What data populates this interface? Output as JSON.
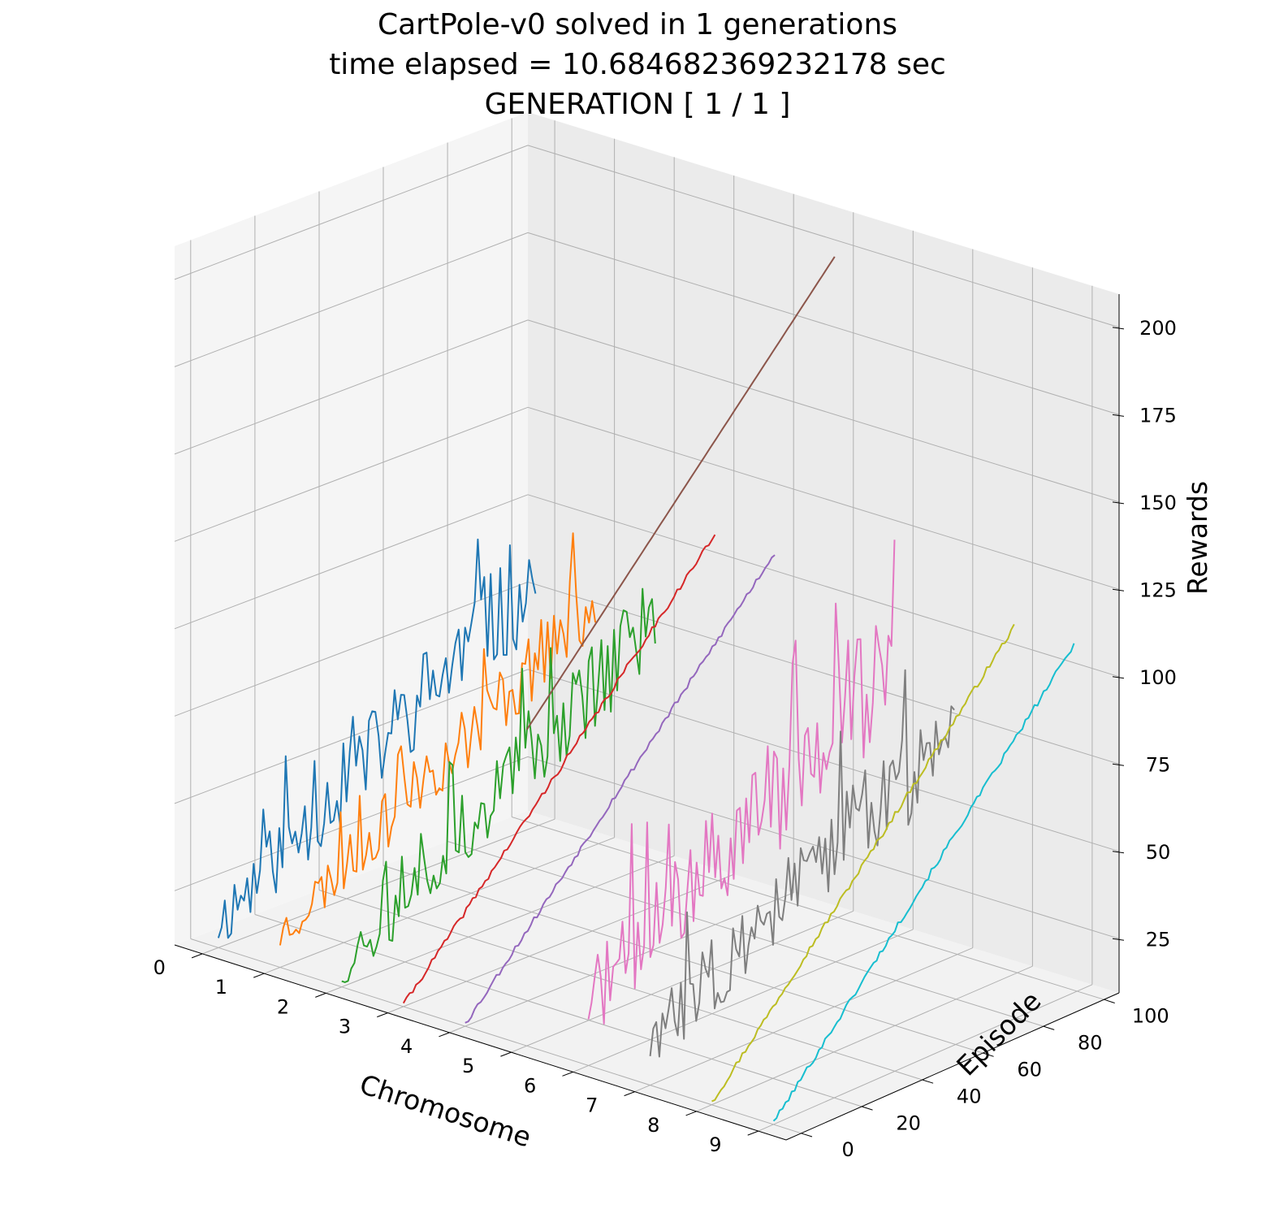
{
  "chart_data": {
    "type": "line",
    "projection": "3d",
    "title_lines": [
      "CartPole-v0 solved in 1 generations",
      "time elapsed = 10.684682369232178 sec",
      "GENERATION [ 1 / 1 ]"
    ],
    "xlabel": "Chromosome",
    "ylabel": "Episode",
    "zlabel": "Rewards",
    "x_ticks": [
      0,
      1,
      2,
      3,
      4,
      5,
      6,
      7,
      8,
      9
    ],
    "y_ticks": [
      0,
      20,
      40,
      60,
      80,
      100
    ],
    "z_ticks": [
      25,
      50,
      75,
      100,
      125,
      150,
      175,
      200
    ],
    "xlim": [
      -0.45,
      9.45
    ],
    "ylim": [
      -5,
      105
    ],
    "zlim": [
      9.5,
      209.5
    ],
    "grid": true,
    "episodes": {
      "start": 0,
      "count": 100
    },
    "series": [
      {
        "chromosome": 0,
        "color": "#1f77b4",
        "profile": "noisy",
        "start": 17,
        "end": 82,
        "noise": 13,
        "seed": 11
      },
      {
        "chromosome": 1,
        "color": "#ff7f0e",
        "profile": "noisy",
        "start": 19,
        "end": 80,
        "noise": 9,
        "seed": 23
      },
      {
        "chromosome": 2,
        "color": "#2ca02c",
        "profile": "noisy",
        "start": 15,
        "end": 80,
        "noise": 11,
        "seed": 37
      },
      {
        "chromosome": 3,
        "color": "#d62728",
        "profile": "linear",
        "start": 10,
        "end": 109,
        "noise": 0.8,
        "seed": 41
      },
      {
        "chromosome": 4,
        "color": "#9467bd",
        "profile": "linear",
        "start": 10,
        "end": 109,
        "noise": 0.8,
        "seed": 53
      },
      {
        "chromosome": 5,
        "color": "#8c564b",
        "profile": "linear",
        "start": 100,
        "end": 199,
        "noise": 0,
        "seed": 61
      },
      {
        "chromosome": 6,
        "color": "#e377c2",
        "profile": "noisy",
        "start": 28,
        "end": 88,
        "noise": 16,
        "seed": 71
      },
      {
        "chromosome": 7,
        "color": "#7f7f7f",
        "profile": "noisy",
        "start": 22,
        "end": 76,
        "noise": 13,
        "seed": 83
      },
      {
        "chromosome": 8,
        "color": "#bcbd22",
        "profile": "linear",
        "start": 10,
        "end": 109,
        "noise": 0.8,
        "seed": 97
      },
      {
        "chromosome": 9,
        "color": "#17becf",
        "profile": "linear",
        "start": 10,
        "end": 109,
        "noise": 0.8,
        "seed": 101
      }
    ]
  }
}
